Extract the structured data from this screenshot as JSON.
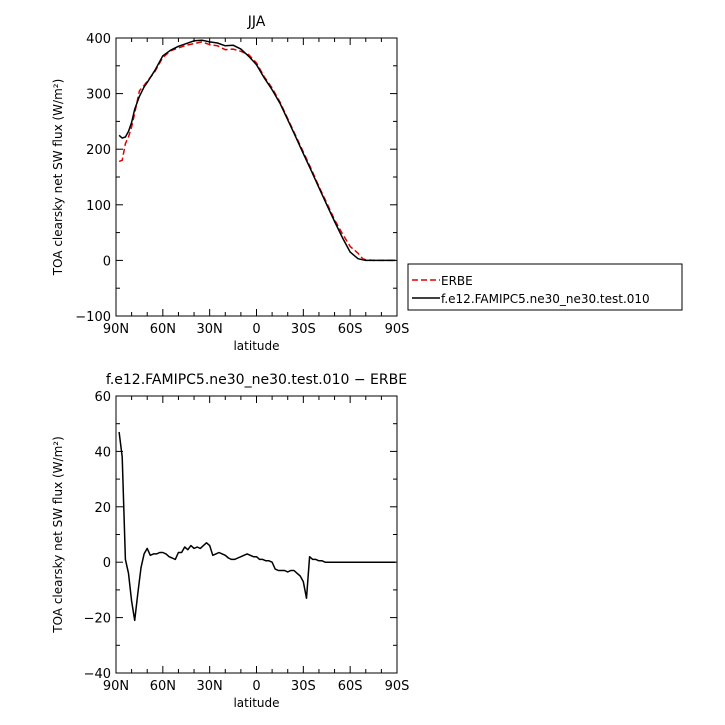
{
  "chart_data": [
    {
      "type": "line",
      "title": "JJA",
      "xlabel": "latitude",
      "ylabel": "TOA clearsky net SW flux (W/m²)",
      "xlim": [
        90,
        -90
      ],
      "ylim": [
        -100,
        400
      ],
      "xticks": [
        90,
        60,
        30,
        0,
        -30,
        -60,
        -90
      ],
      "xtick_labels": [
        "90N",
        "60N",
        "30N",
        "0",
        "30S",
        "60S",
        "90S"
      ],
      "yticks": [
        -100,
        0,
        100,
        200,
        300,
        400
      ],
      "ytick_labels": [
        "−100",
        "0",
        "100",
        "200",
        "300",
        "400"
      ],
      "legend": "right",
      "series": [
        {
          "name": "ERBE",
          "color": "#e00000",
          "dash": "dashed",
          "x": [
            88,
            86,
            84,
            82,
            80,
            78,
            75,
            72,
            70,
            65,
            60,
            55,
            50,
            45,
            40,
            35,
            30,
            25,
            20,
            15,
            10,
            5,
            0,
            -5,
            -10,
            -15,
            -20,
            -25,
            -30,
            -35,
            -40,
            -45,
            -50,
            -55,
            -60,
            -65,
            -68,
            -70,
            -75,
            -80,
            -85,
            -89
          ],
          "y": [
            178,
            180,
            210,
            222,
            240,
            265,
            305,
            315,
            322,
            340,
            365,
            377,
            382,
            387,
            390,
            393,
            388,
            386,
            379,
            380,
            376,
            370,
            355,
            330,
            310,
            285,
            255,
            225,
            195,
            165,
            133,
            103,
            73,
            48,
            25,
            13,
            3,
            1,
            0,
            0,
            0,
            0
          ]
        },
        {
          "name": "f.e12.FAMIPC5.ne30_ne30.test.010",
          "color": "#000000",
          "dash": "solid",
          "x": [
            88,
            86,
            84,
            82,
            80,
            78,
            75,
            72,
            70,
            65,
            60,
            55,
            50,
            45,
            40,
            35,
            30,
            25,
            20,
            15,
            10,
            5,
            0,
            -5,
            -10,
            -15,
            -20,
            -25,
            -30,
            -35,
            -40,
            -45,
            -50,
            -55,
            -60,
            -65,
            -68,
            -70,
            -75,
            -80,
            -85,
            -89
          ],
          "y": [
            225,
            220,
            222,
            232,
            248,
            272,
            295,
            312,
            320,
            342,
            368,
            378,
            385,
            390,
            395,
            396,
            393,
            391,
            386,
            387,
            380,
            367,
            352,
            328,
            307,
            283,
            253,
            223,
            192,
            162,
            131,
            100,
            70,
            41,
            15,
            3,
            1,
            0,
            0,
            0,
            0,
            0
          ]
        }
      ]
    },
    {
      "type": "line",
      "title": "f.e12.FAMIPC5.ne30_ne30.test.010 − ERBE",
      "xlabel": "latitude",
      "ylabel": "TOA clearsky net SW flux (W/m²)",
      "xlim": [
        90,
        -90
      ],
      "ylim": [
        -40,
        60
      ],
      "xticks": [
        90,
        60,
        30,
        0,
        -30,
        -60,
        -90
      ],
      "xtick_labels": [
        "90N",
        "60N",
        "30N",
        "0",
        "30S",
        "60S",
        "90S"
      ],
      "yticks": [
        -40,
        -20,
        0,
        20,
        40,
        60
      ],
      "ytick_labels": [
        "−40",
        "−20",
        "0",
        "20",
        "40",
        "60"
      ],
      "series": [
        {
          "color": "#000000",
          "dash": "solid",
          "x": [
            88,
            86,
            84,
            82,
            80,
            78,
            76,
            74,
            72,
            70,
            68,
            66,
            64,
            62,
            60,
            58,
            56,
            54,
            52,
            50,
            48,
            46,
            44,
            42,
            40,
            38,
            36,
            34,
            32,
            30,
            28,
            26,
            24,
            22,
            20,
            18,
            16,
            14,
            12,
            10,
            8,
            6,
            4,
            2,
            0,
            -2,
            -4,
            -6,
            -8,
            -10,
            -12,
            -14,
            -16,
            -18,
            -20,
            -22,
            -24,
            -26,
            -28,
            -30,
            -32,
            -34,
            -36,
            -38,
            -40,
            -42,
            -44,
            -46,
            -48,
            -50,
            -52,
            -54,
            -56,
            -58,
            -60,
            -62,
            -64,
            -66,
            -68,
            -70,
            -72,
            -74,
            -76,
            -78,
            -80,
            -82,
            -84,
            -86,
            -89
          ],
          "y": [
            47,
            38,
            1,
            -4,
            -14,
            -21,
            -11,
            -2,
            3,
            5,
            2.5,
            3,
            3,
            3.5,
            3.5,
            3,
            2,
            1.5,
            1,
            3.5,
            3.5,
            5.5,
            4.5,
            6,
            5,
            5.5,
            5,
            6,
            7,
            6,
            2.5,
            3,
            3.5,
            3,
            2.5,
            1.5,
            1,
            1,
            1.5,
            2,
            2.5,
            3,
            2.5,
            2,
            2,
            1,
            1,
            0.5,
            0.5,
            0,
            -2.5,
            -3,
            -3,
            -3,
            -3.5,
            -3,
            -3,
            -4,
            -5,
            -7,
            -13,
            2,
            1,
            1,
            0.5,
            0.5,
            0,
            0,
            0,
            0,
            0,
            0,
            0,
            0,
            0,
            0,
            0,
            0,
            0,
            0,
            0,
            0,
            0,
            0,
            0,
            0,
            0,
            0,
            0
          ]
        }
      ]
    }
  ]
}
